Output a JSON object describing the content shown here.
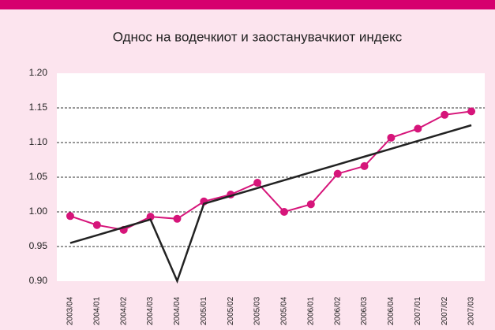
{
  "chart_data": {
    "type": "line",
    "title": "Однос на водечкиот и заостанувачкиот индекс",
    "categories": [
      "2003/04",
      "2004/01",
      "2004/02",
      "2004/03",
      "2004/04",
      "2005/01",
      "2005/02",
      "2005/03",
      "2005/04",
      "2006/01",
      "2006/02",
      "2006/03",
      "2006/04",
      "2007/01",
      "2007/02",
      "2007/03"
    ],
    "series": [
      {
        "color": "#d6157a",
        "marker": true,
        "values": [
          0.994,
          0.981,
          0.974,
          0.993,
          0.99,
          1.015,
          1.025,
          1.042,
          1.0,
          1.011,
          1.055,
          1.066,
          1.107,
          1.12,
          1.14,
          1.145
        ]
      },
      {
        "color": "#222222",
        "marker": false,
        "values": [
          0.955,
          0.9663,
          0.9777,
          0.989,
          0.9003,
          1.0117,
          1.023,
          1.0343,
          1.0457,
          1.057,
          1.0683,
          1.0797,
          1.091,
          1.1023,
          1.1137,
          1.125
        ]
      }
    ],
    "ylim": [
      0.9,
      1.2
    ],
    "yticks": [
      {
        "value": 0.9,
        "label": "0.90"
      },
      0.95,
      {
        "value": 1.0,
        "label": "1.00"
      },
      1.05,
      {
        "value": 1.1,
        "label": "1.10"
      },
      1.15,
      {
        "value": 1.2,
        "label": "1.20"
      }
    ],
    "grid": true
  }
}
